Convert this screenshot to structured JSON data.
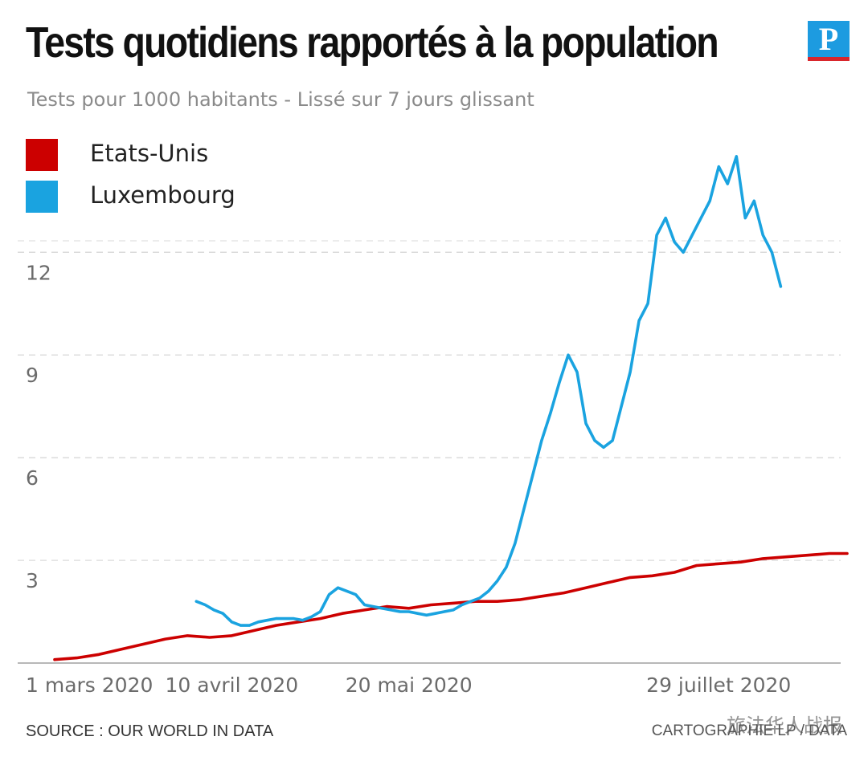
{
  "header": {
    "title": "Tests quotidiens rapportés à la population",
    "logo_letter": "P"
  },
  "chart_data": {
    "type": "line",
    "title": "Tests quotidiens rapportés à la population",
    "subtitle": "Tests pour 1000 habitants - Lissé sur 7 jours glissant",
    "xlabel": "",
    "ylabel": "",
    "x_day_range": [
      0,
      179
    ],
    "ylim": [
      0,
      15.5
    ],
    "y_ticks": [
      3,
      6,
      9,
      12
    ],
    "grid": true,
    "legend_position": "top-left",
    "x_tick_labels": [
      {
        "label": "1 mars 2020",
        "day": 0
      },
      {
        "label": "10 avril 2020",
        "day": 40
      },
      {
        "label": "20 mai 2020",
        "day": 80
      },
      {
        "label": "29 juillet 2020",
        "day": 150
      }
    ],
    "series": [
      {
        "name": "Etats-Unis",
        "color": "#cc0000",
        "points": [
          [
            0,
            0.1
          ],
          [
            5,
            0.15
          ],
          [
            10,
            0.25
          ],
          [
            15,
            0.4
          ],
          [
            20,
            0.55
          ],
          [
            25,
            0.7
          ],
          [
            30,
            0.8
          ],
          [
            35,
            0.75
          ],
          [
            40,
            0.8
          ],
          [
            45,
            0.95
          ],
          [
            50,
            1.1
          ],
          [
            55,
            1.2
          ],
          [
            60,
            1.3
          ],
          [
            65,
            1.45
          ],
          [
            70,
            1.55
          ],
          [
            75,
            1.65
          ],
          [
            80,
            1.6
          ],
          [
            85,
            1.7
          ],
          [
            90,
            1.75
          ],
          [
            95,
            1.8
          ],
          [
            100,
            1.8
          ],
          [
            105,
            1.85
          ],
          [
            110,
            1.95
          ],
          [
            115,
            2.05
          ],
          [
            120,
            2.2
          ],
          [
            125,
            2.35
          ],
          [
            130,
            2.5
          ],
          [
            135,
            2.55
          ],
          [
            140,
            2.65
          ],
          [
            145,
            2.85
          ],
          [
            150,
            2.9
          ],
          [
            155,
            2.95
          ],
          [
            160,
            3.05
          ],
          [
            165,
            3.1
          ],
          [
            170,
            3.15
          ],
          [
            175,
            3.2
          ],
          [
            179,
            3.2
          ]
        ]
      },
      {
        "name": "Luxembourg",
        "color": "#1aa3e0",
        "points": [
          [
            32,
            1.8
          ],
          [
            34,
            1.7
          ],
          [
            36,
            1.55
          ],
          [
            38,
            1.45
          ],
          [
            40,
            1.2
          ],
          [
            42,
            1.1
          ],
          [
            44,
            1.1
          ],
          [
            46,
            1.2
          ],
          [
            48,
            1.25
          ],
          [
            50,
            1.3
          ],
          [
            52,
            1.3
          ],
          [
            54,
            1.3
          ],
          [
            56,
            1.25
          ],
          [
            58,
            1.35
          ],
          [
            60,
            1.5
          ],
          [
            62,
            2.0
          ],
          [
            64,
            2.2
          ],
          [
            66,
            2.1
          ],
          [
            68,
            2.0
          ],
          [
            70,
            1.7
          ],
          [
            72,
            1.65
          ],
          [
            74,
            1.6
          ],
          [
            76,
            1.55
          ],
          [
            78,
            1.5
          ],
          [
            80,
            1.5
          ],
          [
            82,
            1.45
          ],
          [
            84,
            1.4
          ],
          [
            86,
            1.45
          ],
          [
            88,
            1.5
          ],
          [
            90,
            1.55
          ],
          [
            92,
            1.7
          ],
          [
            94,
            1.8
          ],
          [
            96,
            1.9
          ],
          [
            98,
            2.1
          ],
          [
            100,
            2.4
          ],
          [
            102,
            2.8
          ],
          [
            104,
            3.5
          ],
          [
            106,
            4.5
          ],
          [
            108,
            5.5
          ],
          [
            110,
            6.5
          ],
          [
            112,
            7.3
          ],
          [
            114,
            8.2
          ],
          [
            116,
            9.0
          ],
          [
            118,
            8.5
          ],
          [
            120,
            7.0
          ],
          [
            122,
            6.5
          ],
          [
            124,
            6.3
          ],
          [
            126,
            6.5
          ],
          [
            128,
            7.5
          ],
          [
            130,
            8.5
          ],
          [
            132,
            10.0
          ],
          [
            134,
            10.5
          ],
          [
            136,
            12.5
          ],
          [
            138,
            13.0
          ],
          [
            140,
            12.3
          ],
          [
            142,
            12.0
          ],
          [
            144,
            12.5
          ],
          [
            146,
            13.0
          ],
          [
            148,
            13.5
          ],
          [
            150,
            14.5
          ],
          [
            152,
            14.0
          ],
          [
            154,
            14.8
          ],
          [
            156,
            13.0
          ],
          [
            158,
            13.5
          ],
          [
            160,
            12.5
          ],
          [
            162,
            12.0
          ],
          [
            164,
            11.0
          ]
        ]
      }
    ]
  },
  "footer": {
    "source": "SOURCE : OUR WORLD IN DATA",
    "credit": "CARTOGRAPHIE LP / DATA",
    "watermark": "旅法华人战报"
  }
}
